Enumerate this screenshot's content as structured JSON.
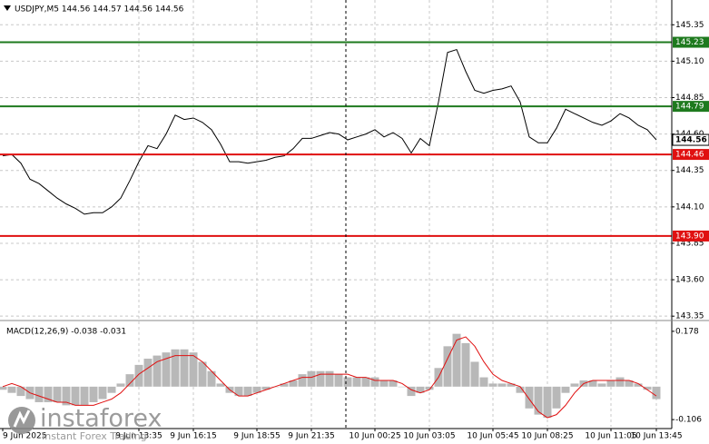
{
  "chart_data": [
    {
      "type": "line",
      "title": "USDJPY,M5  144.56 144.57 144.56 144.56",
      "color": "#000000",
      "values": [
        144.45,
        144.46,
        144.4,
        144.29,
        144.26,
        144.21,
        144.16,
        144.12,
        144.09,
        144.05,
        144.06,
        144.06,
        144.1,
        144.16,
        144.28,
        144.41,
        144.52,
        144.5,
        144.6,
        144.73,
        144.7,
        144.71,
        144.68,
        144.63,
        144.53,
        144.41,
        144.41,
        144.4,
        144.41,
        144.42,
        144.44,
        144.45,
        144.5,
        144.57,
        144.57,
        144.59,
        144.61,
        144.6,
        144.56,
        144.58,
        144.6,
        144.63,
        144.58,
        144.61,
        144.57,
        144.47,
        144.57,
        144.52,
        144.82,
        145.16,
        145.18,
        145.03,
        144.9,
        144.88,
        144.9,
        144.91,
        144.93,
        144.82,
        144.58,
        144.54,
        144.54,
        144.64,
        144.77,
        144.74,
        144.71,
        144.68,
        144.66,
        144.69,
        144.74,
        144.71,
        144.66,
        144.63,
        144.56
      ],
      "ylim": [
        143.32,
        145.52
      ],
      "yticks": [
        145.35,
        {
          "value": 145.1,
          "label": "145.10"
        },
        144.85,
        {
          "value": 144.6,
          "label": "144.60"
        },
        144.35,
        {
          "value": 144.1,
          "label": "144.10"
        },
        143.85,
        {
          "value": 143.6,
          "label": "143.60"
        },
        143.35
      ],
      "grid": true,
      "levels": [
        {
          "value": 145.23,
          "color": "#1e7a1e"
        },
        {
          "value": 144.79,
          "color": "#1e7a1e"
        },
        {
          "value": 144.46,
          "color": "#e01010"
        },
        {
          "value": 143.9,
          "label": "143.90",
          "color": "#e01010"
        }
      ],
      "current": 144.56
    },
    {
      "type": "macd",
      "title": "MACD(12,26,9) -0.038 -0.031",
      "color": "#b8b8b8",
      "categories": [
        "9 Jun 2025",
        null,
        null,
        null,
        null,
        null,
        null,
        null,
        null,
        null,
        null,
        null,
        null,
        null,
        null,
        "9 Jun 13:35",
        null,
        null,
        null,
        null,
        null,
        "9 Jun 16:15",
        null,
        null,
        null,
        null,
        null,
        null,
        "9 Jun 18:55",
        null,
        null,
        null,
        null,
        null,
        "9 Jun 21:35",
        null,
        null,
        null,
        null,
        null,
        null,
        "10 Jun 00:25",
        null,
        null,
        null,
        null,
        null,
        "10 Jun 03:05",
        null,
        null,
        null,
        null,
        null,
        null,
        "10 Jun 05:45",
        null,
        null,
        null,
        null,
        null,
        "10 Jun 08:25",
        null,
        null,
        null,
        null,
        null,
        null,
        "10 Jun 11:05",
        null,
        null,
        null,
        null,
        "10 Jun 13:45"
      ],
      "values": [
        -0.01,
        -0.02,
        -0.03,
        -0.04,
        -0.05,
        -0.05,
        -0.05,
        -0.06,
        -0.06,
        -0.06,
        -0.05,
        -0.04,
        -0.02,
        0.01,
        0.04,
        0.07,
        0.09,
        0.1,
        0.11,
        0.12,
        0.12,
        0.11,
        0.08,
        0.05,
        0.01,
        -0.02,
        -0.03,
        -0.03,
        -0.02,
        -0.01,
        0.0,
        0.01,
        0.02,
        0.04,
        0.05,
        0.05,
        0.05,
        0.04,
        0.03,
        0.03,
        0.03,
        0.03,
        0.02,
        0.02,
        0.0,
        -0.03,
        -0.02,
        -0.01,
        0.06,
        0.13,
        0.17,
        0.14,
        0.08,
        0.03,
        0.01,
        0.01,
        0.01,
        -0.02,
        -0.07,
        -0.09,
        -0.1,
        -0.07,
        -0.02,
        0.01,
        0.02,
        0.02,
        0.01,
        0.02,
        0.03,
        0.02,
        0.01,
        -0.01,
        -0.04
      ],
      "signal": {
        "color": "#e01010",
        "values": [
          0.0,
          0.01,
          0.0,
          -0.02,
          -0.03,
          -0.04,
          -0.05,
          -0.05,
          -0.06,
          -0.06,
          -0.06,
          -0.05,
          -0.04,
          -0.02,
          0.01,
          0.04,
          0.06,
          0.08,
          0.09,
          0.1,
          0.1,
          0.1,
          0.08,
          0.05,
          0.02,
          -0.01,
          -0.03,
          -0.03,
          -0.02,
          -0.01,
          0.0,
          0.01,
          0.02,
          0.03,
          0.03,
          0.04,
          0.04,
          0.04,
          0.04,
          0.03,
          0.03,
          0.02,
          0.02,
          0.02,
          0.01,
          -0.01,
          -0.02,
          -0.01,
          0.03,
          0.09,
          0.15,
          0.16,
          0.13,
          0.08,
          0.04,
          0.02,
          0.01,
          0.0,
          -0.04,
          -0.08,
          -0.1,
          -0.09,
          -0.06,
          -0.02,
          0.01,
          0.02,
          0.02,
          0.02,
          0.02,
          0.02,
          0.01,
          -0.01,
          -0.03
        ]
      },
      "ylim": [
        -0.129,
        0.204
      ],
      "yticks": [
        0.178,
        -0.106
      ]
    }
  ],
  "watermark": {
    "brand": "instaforex",
    "tagline": "Instant Forex Trading"
  }
}
